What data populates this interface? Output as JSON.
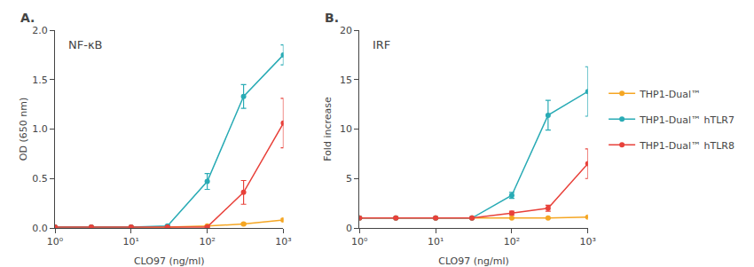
{
  "chart_data": [
    {
      "type": "line",
      "title": "NF-κB",
      "annotations": [
        "A."
      ],
      "xlabel": "CLO97 (ng/ml)",
      "ylabel": "OD (650 nm)",
      "log": "x",
      "grid": false,
      "legend": "right",
      "marker": "circle",
      "line_style": "solid",
      "x": [
        1,
        3,
        10,
        30,
        100,
        300,
        1000
      ],
      "xlim": [
        1,
        1000
      ],
      "xticks": [
        {
          "value": 1,
          "label": "10⁰"
        },
        {
          "value": 10,
          "label": "10¹"
        },
        {
          "value": 100,
          "label": "10²"
        },
        {
          "value": 1000,
          "label": "10³"
        }
      ],
      "ylim": [
        0,
        2.0
      ],
      "yticks": [
        {
          "value": 0,
          "label": "0.0"
        },
        0.5,
        {
          "value": 1,
          "label": "1.0"
        },
        1.5,
        {
          "value": 2,
          "label": "2.0"
        }
      ],
      "series": [
        {
          "name": "THP1-Dual™",
          "color": "#F5A623",
          "values": [
            0.01,
            0.01,
            0.01,
            0.01,
            0.02,
            0.04,
            0.08
          ],
          "errors": [
            0.005,
            0.005,
            0.005,
            0.005,
            0.005,
            0.01,
            0.015
          ]
        },
        {
          "name": "THP1-Dual™ hTLR7",
          "color": "#29ABB5",
          "values": [
            0.01,
            0.01,
            0.01,
            0.02,
            0.47,
            1.33,
            1.75
          ],
          "errors": [
            0.005,
            0.005,
            0.005,
            0.01,
            0.08,
            0.12,
            0.1
          ]
        },
        {
          "name": "THP1-Dual™ hTLR8",
          "color": "#E8413A",
          "values": [
            0.01,
            0.01,
            0.01,
            0.01,
            0.01,
            0.36,
            1.06
          ],
          "errors": [
            0.005,
            0.005,
            0.005,
            0.005,
            0.01,
            0.12,
            0.25
          ]
        }
      ]
    },
    {
      "type": "line",
      "title": "IRF",
      "annotations": [
        "B."
      ],
      "xlabel": "CLO97 (ng/ml)",
      "ylabel": "Fold increase",
      "log": "x",
      "grid": false,
      "legend": "right",
      "marker": "circle",
      "line_style": "solid",
      "x": [
        1,
        3,
        10,
        30,
        100,
        300,
        1000
      ],
      "xlim": [
        1,
        1000
      ],
      "xticks": [
        {
          "value": 1,
          "label": "10⁰"
        },
        {
          "value": 10,
          "label": "10¹"
        },
        {
          "value": 100,
          "label": "10²"
        },
        {
          "value": 1000,
          "label": "10³"
        }
      ],
      "ylim": [
        0,
        20
      ],
      "yticks": [
        0,
        5,
        10,
        15,
        20
      ],
      "series": [
        {
          "name": "THP1-Dual™",
          "color": "#F5A623",
          "values": [
            1.0,
            1.0,
            1.0,
            1.0,
            1.0,
            1.0,
            1.1
          ],
          "errors": [
            0.05,
            0.05,
            0.05,
            0.05,
            0.05,
            0.05,
            0.05
          ]
        },
        {
          "name": "THP1-Dual™ hTLR7",
          "color": "#29ABB5",
          "values": [
            1.0,
            1.0,
            1.0,
            1.0,
            3.3,
            11.4,
            13.8
          ],
          "errors": [
            0.05,
            0.05,
            0.05,
            0.05,
            0.3,
            1.5,
            2.5
          ]
        },
        {
          "name": "THP1-Dual™ hTLR8",
          "color": "#E8413A",
          "values": [
            1.0,
            1.0,
            1.0,
            1.0,
            1.5,
            2.0,
            6.5
          ],
          "errors": [
            0.05,
            0.05,
            0.05,
            0.05,
            0.2,
            0.3,
            1.5
          ]
        }
      ]
    }
  ]
}
